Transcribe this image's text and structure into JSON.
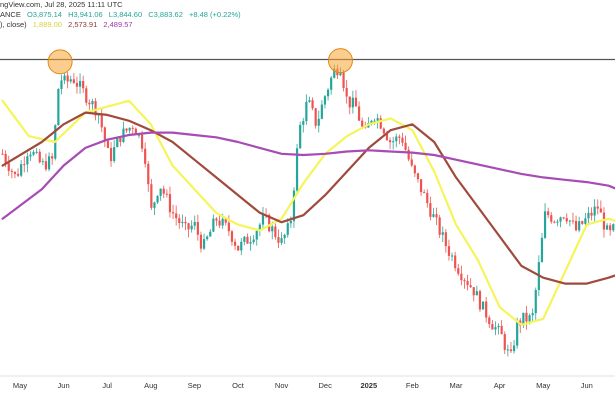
{
  "header": {
    "line1_prefix": "ngView.com, Jul 28, 2025 11:11 UTC",
    "line2_prefix": "ANCE",
    "ohlc": {
      "o": "O3,875.14",
      "h": "H3,941.06",
      "l": "L3,844.60",
      "c": "C3,883.62",
      "change": "+8.48 (+0.22%)"
    },
    "ma_prefix": "), close)",
    "ma_values": [
      {
        "text": "1,889.00",
        "color": "#e8e85a"
      },
      {
        "text": "2,573.91",
        "color": "#8b3a2e"
      },
      {
        "text": "2,489.57",
        "color": "#9c3aa8"
      }
    ]
  },
  "colors": {
    "up": "#26a69a",
    "down": "#ef5350",
    "ma_fast": "#f5f55a",
    "ma_mid": "#a04a3c",
    "ma_slow": "#a74bb5",
    "resistance": "#555555",
    "highlight": "#f7a535"
  },
  "chart_data": {
    "type": "line",
    "title": "",
    "x_ticks": [
      {
        "label": "May",
        "bold": false
      },
      {
        "label": "Jun",
        "bold": false
      },
      {
        "label": "Jul",
        "bold": false
      },
      {
        "label": "Aug",
        "bold": false
      },
      {
        "label": "Sep",
        "bold": false
      },
      {
        "label": "Oct",
        "bold": false
      },
      {
        "label": "Nov",
        "bold": false
      },
      {
        "label": "Dec",
        "bold": false
      },
      {
        "label": "2025",
        "bold": true
      },
      {
        "label": "Feb",
        "bold": false
      },
      {
        "label": "Mar",
        "bold": false
      },
      {
        "label": "Apr",
        "bold": false
      },
      {
        "label": "May",
        "bold": false
      },
      {
        "label": "Jun",
        "bold": false
      }
    ],
    "x_months": [
      0,
      1,
      2,
      3,
      4,
      5,
      6,
      7,
      8,
      9,
      10,
      11,
      12,
      13
    ],
    "y_range": [
      1350,
      4250
    ],
    "resistance_level": 4000,
    "highlighted_tops": [
      {
        "x": 0.92,
        "y": 3980
      },
      {
        "x": 7.35,
        "y": 3990
      }
    ],
    "series": [
      {
        "name": "close",
        "x": [
          -0.4,
          -0.1,
          0.2,
          0.5,
          0.75,
          0.9,
          1.05,
          1.2,
          1.5,
          1.8,
          2.05,
          2.3,
          2.6,
          2.85,
          3.0,
          3.2,
          3.5,
          3.8,
          4.0,
          4.2,
          4.5,
          4.8,
          5.0,
          5.3,
          5.6,
          6.0,
          6.2,
          6.4,
          6.6,
          6.8,
          7.0,
          7.2,
          7.35,
          7.5,
          7.7,
          7.9,
          8.1,
          8.3,
          8.5,
          8.75,
          9.0,
          9.2,
          9.5,
          9.8,
          10.1,
          10.4,
          10.6,
          10.85,
          11.05,
          11.25,
          11.4,
          11.55,
          11.75,
          11.95,
          12.05,
          12.25,
          12.5,
          12.75,
          13.0,
          13.25,
          13.5,
          13.7,
          13.85
        ],
        "values": [
          3200,
          3000,
          3250,
          3100,
          3150,
          3850,
          3800,
          3850,
          3700,
          3550,
          3150,
          3350,
          3450,
          3250,
          2700,
          2950,
          2700,
          2550,
          2600,
          2400,
          2650,
          2550,
          2400,
          2500,
          2650,
          2450,
          2600,
          3400,
          3650,
          3450,
          3700,
          3900,
          3950,
          3650,
          3600,
          3350,
          3550,
          3450,
          3300,
          3350,
          3050,
          2900,
          2650,
          2400,
          2200,
          2050,
          1900,
          1750,
          1650,
          1450,
          1750,
          1800,
          1800,
          2400,
          2700,
          2650,
          2700,
          2550,
          2650,
          2750,
          2500,
          2600,
          2450
        ]
      },
      {
        "name": "",
        "x": [
          -0.4,
          0.2,
          0.8,
          1.5,
          2.0,
          2.5,
          3.0,
          3.5,
          4.0,
          4.5,
          5.0,
          5.5,
          6.0,
          6.5,
          7.0,
          7.5,
          8.0,
          8.5,
          9.0,
          9.5,
          10.0,
          10.5,
          11.0,
          11.5,
          12.0,
          12.5,
          13.0,
          13.5,
          13.9
        ],
        "values": [
          3650,
          3350,
          3300,
          3550,
          3600,
          3650,
          3450,
          3100,
          2900,
          2700,
          2600,
          2550,
          2650,
          2950,
          3200,
          3350,
          3450,
          3500,
          3400,
          3050,
          2600,
          2300,
          1900,
          1750,
          1800,
          2200,
          2600,
          2650,
          2600
        ]
      },
      {
        "name": "",
        "x": [
          -0.4,
          0.5,
          1.0,
          1.5,
          2.0,
          2.5,
          3.0,
          3.5,
          4.0,
          4.5,
          5.0,
          5.5,
          6.0,
          6.5,
          7.0,
          7.5,
          8.0,
          8.5,
          9.0,
          9.5,
          10.0,
          10.5,
          11.0,
          11.5,
          12.0,
          12.5,
          13.0,
          13.5,
          13.9
        ],
        "values": [
          3100,
          3300,
          3450,
          3550,
          3530,
          3480,
          3400,
          3300,
          3150,
          3000,
          2850,
          2700,
          2620,
          2680,
          2850,
          3050,
          3250,
          3400,
          3450,
          3300,
          3000,
          2750,
          2500,
          2250,
          2150,
          2100,
          2100,
          2150,
          2200
        ]
      },
      {
        "name": "",
        "x": [
          -0.4,
          0.5,
          1.0,
          1.5,
          2.0,
          2.5,
          3.0,
          3.5,
          4.0,
          4.5,
          5.0,
          5.5,
          6.0,
          6.5,
          7.0,
          7.5,
          8.0,
          8.5,
          9.0,
          9.5,
          10.0,
          10.5,
          11.0,
          11.5,
          12.0,
          12.5,
          13.0,
          13.5,
          13.9
        ],
        "values": [
          2650,
          2900,
          3100,
          3250,
          3320,
          3360,
          3380,
          3380,
          3360,
          3340,
          3300,
          3250,
          3200,
          3190,
          3200,
          3220,
          3230,
          3220,
          3210,
          3190,
          3150,
          3110,
          3070,
          3030,
          3000,
          2980,
          2960,
          2930,
          2870
        ]
      }
    ]
  }
}
